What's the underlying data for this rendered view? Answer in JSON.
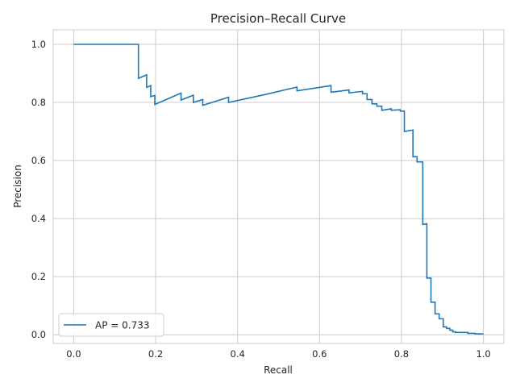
{
  "chart_data": {
    "type": "line",
    "title": "Precision–Recall Curve",
    "xlabel": "Recall",
    "ylabel": "Precision",
    "xlim": [
      -0.05,
      1.05
    ],
    "ylim": [
      -0.03,
      1.05
    ],
    "xticks": [
      0.0,
      0.2,
      0.4,
      0.6,
      0.8,
      1.0
    ],
    "xtick_labels": [
      "0.0",
      "0.2",
      "0.4",
      "0.6",
      "0.8",
      "1.0"
    ],
    "yticks": [
      0.0,
      0.2,
      0.4,
      0.6,
      0.8,
      1.0
    ],
    "ytick_labels": [
      "0.0",
      "0.2",
      "0.4",
      "0.6",
      "0.8",
      "1.0"
    ],
    "grid": true,
    "legend_position": "lower-left",
    "colors": {
      "series": "#1f77b4",
      "grid": "#cccccc",
      "spine": "#cccccc",
      "text": "#262626",
      "background": "#ffffff"
    },
    "series": [
      {
        "name": "AP = 0.733",
        "step": true,
        "x": [
          0.0,
          0.158,
          0.158,
          0.178,
          0.178,
          0.188,
          0.188,
          0.198,
          0.198,
          0.262,
          0.262,
          0.292,
          0.292,
          0.315,
          0.315,
          0.378,
          0.378,
          0.46,
          0.545,
          0.545,
          0.628,
          0.628,
          0.672,
          0.672,
          0.705,
          0.705,
          0.716,
          0.716,
          0.728,
          0.728,
          0.74,
          0.74,
          0.752,
          0.752,
          0.775,
          0.775,
          0.797,
          0.797,
          0.807,
          0.807,
          0.828,
          0.828,
          0.838,
          0.838,
          0.852,
          0.852,
          0.862,
          0.862,
          0.872,
          0.872,
          0.882,
          0.882,
          0.892,
          0.892,
          0.902,
          0.902,
          0.91,
          0.91,
          0.918,
          0.918,
          0.925,
          0.925,
          0.932,
          0.932,
          0.94,
          0.94,
          0.962,
          0.962,
          0.98,
          0.98,
          1.0
        ],
        "y": [
          1.0,
          1.0,
          0.883,
          0.895,
          0.852,
          0.858,
          0.82,
          0.824,
          0.793,
          0.832,
          0.808,
          0.825,
          0.8,
          0.81,
          0.79,
          0.818,
          0.8,
          0.825,
          0.853,
          0.84,
          0.858,
          0.835,
          0.843,
          0.833,
          0.838,
          0.83,
          0.83,
          0.81,
          0.81,
          0.795,
          0.795,
          0.787,
          0.787,
          0.773,
          0.778,
          0.773,
          0.775,
          0.77,
          0.77,
          0.7,
          0.705,
          0.613,
          0.613,
          0.595,
          0.595,
          0.38,
          0.382,
          0.195,
          0.195,
          0.112,
          0.112,
          0.072,
          0.072,
          0.055,
          0.055,
          0.027,
          0.027,
          0.022,
          0.022,
          0.016,
          0.016,
          0.01,
          0.01,
          0.008,
          0.008,
          0.008,
          0.008,
          0.005,
          0.005,
          0.003,
          0.003
        ]
      }
    ]
  }
}
